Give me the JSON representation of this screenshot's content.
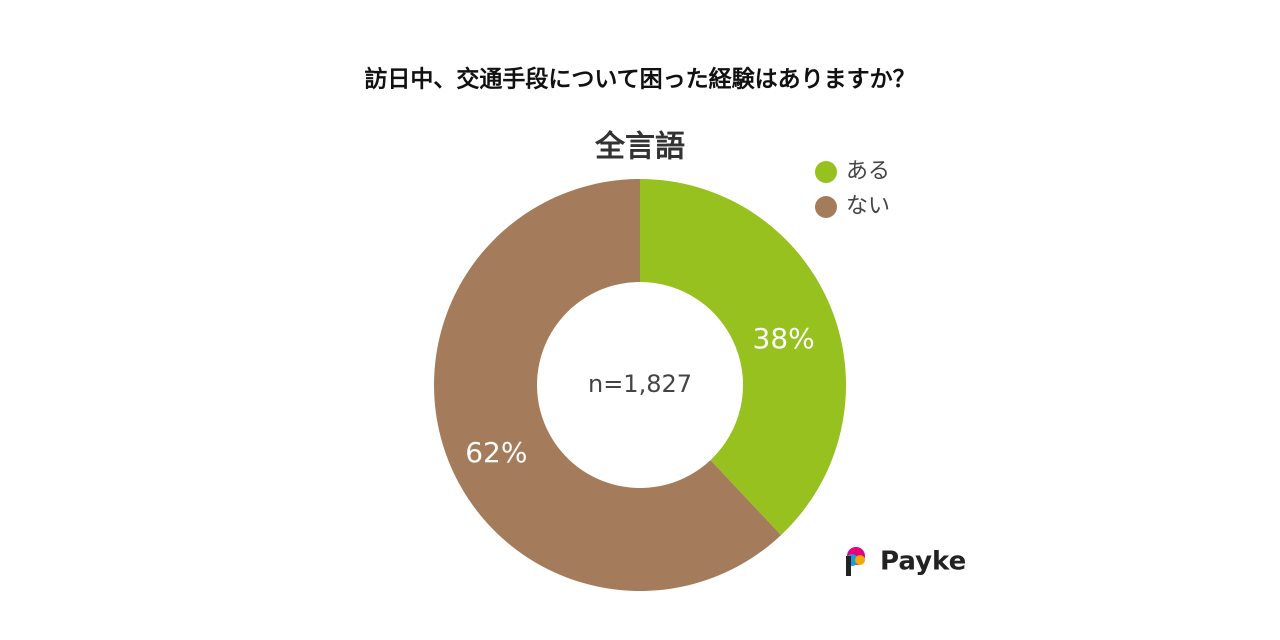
{
  "chart_data": {
    "type": "pie",
    "title": "訪日中、交通手段について困った経験はありますか？",
    "subtitle": "全言語",
    "categories": [
      "ある",
      "ない"
    ],
    "values": [
      38,
      62
    ],
    "value_labels": [
      "38%",
      "62%"
    ],
    "colors": [
      "#97c11f",
      "#a57c5b"
    ],
    "annotation": "n=1,827",
    "donut": true
  },
  "brand": "Payke"
}
